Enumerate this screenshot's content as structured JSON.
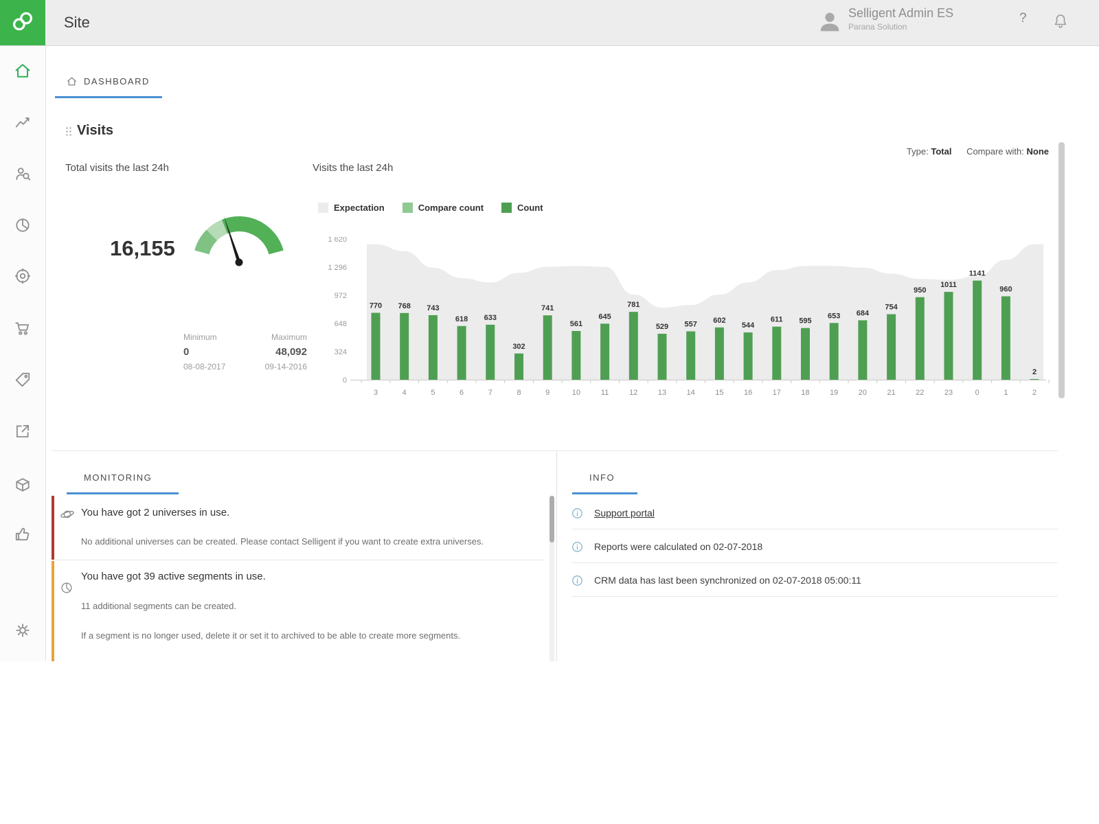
{
  "colors": {
    "brand_green": "#3cb44b",
    "bar_green": "#4f9f53",
    "compare_green": "#90ca92",
    "expectation_gray": "#ececec",
    "tab_underline_blue": "#4a8fd3",
    "alert_red": "#b03a30",
    "alert_orange": "#e8a33d"
  },
  "topbar": {
    "title": "Site",
    "help": "?",
    "user": {
      "name": "Selligent Admin ES",
      "org": "Parana Solution"
    }
  },
  "sidebar": {
    "items": [
      {
        "icon": "home-icon",
        "active": true
      },
      {
        "icon": "analytics-icon"
      },
      {
        "icon": "audience-search-icon"
      },
      {
        "icon": "pie-chart-icon"
      },
      {
        "icon": "target-icon"
      },
      {
        "icon": "cart-icon"
      },
      {
        "icon": "tag-icon"
      },
      {
        "icon": "external-link-icon"
      },
      {
        "icon": "package-icon"
      },
      {
        "icon": "thumbs-up-icon"
      },
      {
        "icon": "settings-icon"
      }
    ]
  },
  "breadcrumb": {
    "label": "DASHBOARD"
  },
  "visits": {
    "title": "Visits",
    "type_label": "Type:",
    "type_value": "Total",
    "compare_label": "Compare with:",
    "compare_value": "None",
    "gauge_title": "Total visits the last 24h",
    "total": "16,155",
    "minimum": {
      "label": "Minimum",
      "value": "0",
      "date": "08-08-2017"
    },
    "maximum": {
      "label": "Maximum",
      "value": "48,092",
      "date": "09-14-2016"
    },
    "chart_title": "Visits the last 24h",
    "legend": [
      {
        "label": "Expectation",
        "color": "#ececec"
      },
      {
        "label": "Compare count",
        "color": "#90ca92"
      },
      {
        "label": "Count",
        "color": "#4f9f53"
      }
    ]
  },
  "chart_data": {
    "type": "bar",
    "title": "Visits the last 24h",
    "categories": [
      "3",
      "4",
      "5",
      "6",
      "7",
      "8",
      "9",
      "10",
      "11",
      "12",
      "13",
      "14",
      "15",
      "16",
      "17",
      "18",
      "19",
      "20",
      "21",
      "22",
      "23",
      "0",
      "1",
      "2"
    ],
    "series": [
      {
        "name": "Count",
        "type": "bar",
        "color": "#4f9f53",
        "values": [
          770,
          768,
          743,
          618,
          633,
          302,
          741,
          561,
          645,
          781,
          529,
          557,
          602,
          544,
          611,
          595,
          653,
          684,
          754,
          950,
          1011,
          1141,
          960,
          2
        ]
      },
      {
        "name": "Expectation",
        "type": "area",
        "color": "#ececec",
        "values": [
          1560,
          1480,
          1290,
          1170,
          1120,
          1230,
          1300,
          1310,
          1300,
          980,
          830,
          860,
          980,
          1120,
          1260,
          1310,
          1310,
          1290,
          1220,
          1160,
          1150,
          1190,
          1380,
          1560
        ]
      }
    ],
    "ylim": [
      0,
      1620
    ],
    "yticks": [
      {
        "value": 0,
        "label": "0"
      },
      {
        "value": 324,
        "label": "324"
      },
      {
        "value": 648,
        "label": "648"
      },
      {
        "value": 972,
        "label": "972"
      },
      {
        "value": 1296,
        "label": "1 296"
      },
      {
        "value": 1620,
        "label": "1 620"
      }
    ],
    "value_labels": true,
    "legend_position": "top",
    "grid": false
  },
  "monitoring": {
    "tab": "MONITORING",
    "items": [
      {
        "severity": "critical",
        "icon": "universe-icon",
        "title": "You have got 2 universes in use.",
        "lines": [
          "No additional universes can be created. Please contact Selligent if you want to create extra universes."
        ]
      },
      {
        "severity": "warning",
        "icon": "segments-icon",
        "title": "You have got 39 active segments in use.",
        "lines": [
          "11 additional segments can be created.",
          "If a segment is no longer used, delete it or set it to archived to be able to create more segments."
        ]
      }
    ]
  },
  "info": {
    "tab": "INFO",
    "items": [
      {
        "text": "Support portal",
        "link": true
      },
      {
        "text": "Reports were calculated on 02-07-2018",
        "link": false
      },
      {
        "text": "CRM data has last been synchronized on 02-07-2018 05:00:11",
        "link": false
      }
    ]
  }
}
